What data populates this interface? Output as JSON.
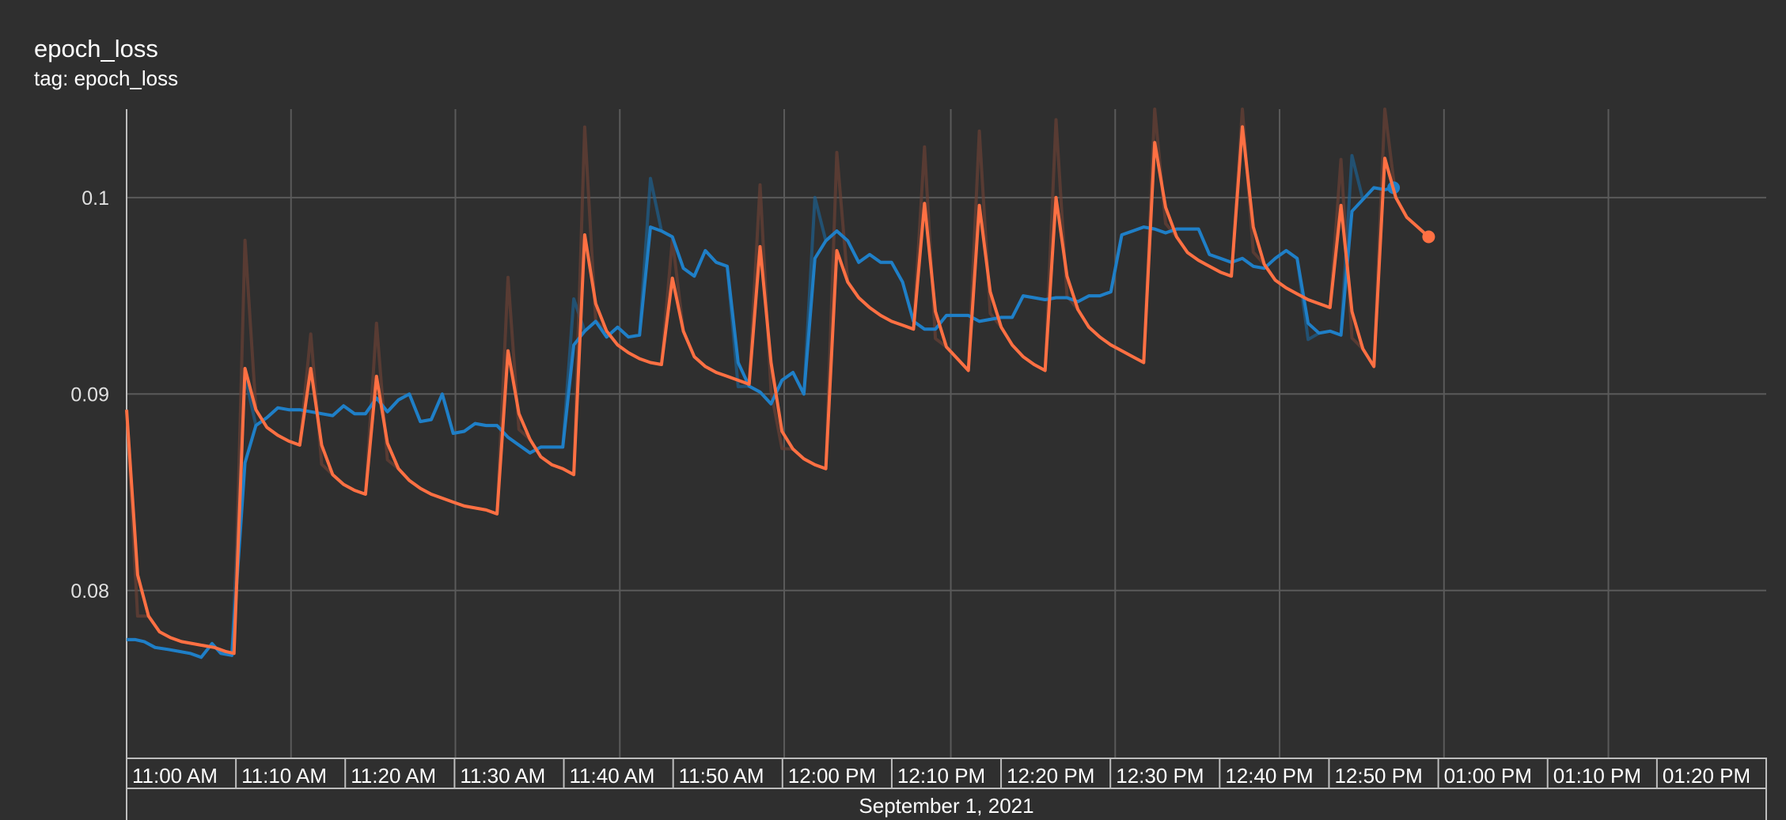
{
  "header": {
    "title": "epoch_loss",
    "subtitle": "tag: epoch_loss"
  },
  "chart_data": {
    "type": "line",
    "title": "epoch_loss",
    "subtitle": "tag: epoch_loss",
    "xlabel": "September 1, 2021",
    "ylabel": "",
    "x_unit": "minutes after 11:00 AM",
    "xlim": [
      -3.8,
      71
    ],
    "ylim": [
      0.0715,
      0.1045
    ],
    "grid": true,
    "y_ticks": [
      {
        "value": 0.08,
        "label": "0.08"
      },
      {
        "value": 0.09,
        "label": "0.09"
      },
      {
        "value": 0.1,
        "label": "0.1"
      }
    ],
    "x_ticks": [
      {
        "value": 0,
        "label": "11:00 AM"
      },
      {
        "value": 5,
        "label": "11:10 AM"
      },
      {
        "value": 10,
        "label": "11:20 AM"
      },
      {
        "value": 15,
        "label": "11:30 AM"
      },
      {
        "value": 20,
        "label": "11:40 AM"
      },
      {
        "value": 25,
        "label": "11:50 AM"
      },
      {
        "value": 30,
        "label": "12:00 PM"
      },
      {
        "value": 35,
        "label": "12:10 PM"
      },
      {
        "value": 40,
        "label": "12:20 PM"
      },
      {
        "value": 45,
        "label": "12:30 PM"
      },
      {
        "value": 50,
        "label": "12:40 PM"
      },
      {
        "value": 55,
        "label": "12:50 PM"
      },
      {
        "value": 60,
        "label": "01:00 PM"
      },
      {
        "value": 65,
        "label": "01:10 PM"
      },
      {
        "value": 70,
        "label": "01:20 PM"
      }
    ],
    "grid_x": [
      3.7,
      11.2,
      18.7,
      26.2,
      33.8,
      41.3,
      48.8,
      56.3,
      63.8
    ],
    "series": [
      {
        "name": "",
        "color": "#1f7fc7",
        "raw_color": "#1d5f8f",
        "values": [
          [
            -3.8,
            0.0775
          ],
          [
            -3.4,
            0.0775
          ],
          [
            -3.0,
            0.0774
          ],
          [
            -2.5,
            0.0771
          ],
          [
            -1.9,
            0.077
          ],
          [
            -1.4,
            0.0769
          ],
          [
            -0.9,
            0.0768
          ],
          [
            -0.4,
            0.0766
          ],
          [
            0.1,
            0.0773
          ],
          [
            0.5,
            0.0768
          ],
          [
            1.0,
            0.0767
          ],
          [
            1.6,
            0.0865
          ],
          [
            2.1,
            0.0884
          ],
          [
            2.6,
            0.0888
          ],
          [
            3.1,
            0.0893
          ],
          [
            3.6,
            0.0892
          ],
          [
            4.1,
            0.0892
          ],
          [
            4.6,
            0.0891
          ],
          [
            5.1,
            0.089
          ],
          [
            5.6,
            0.0889
          ],
          [
            6.1,
            0.0894
          ],
          [
            6.6,
            0.089
          ],
          [
            7.1,
            0.089
          ],
          [
            7.6,
            0.0898
          ],
          [
            8.1,
            0.0891
          ],
          [
            8.6,
            0.0897
          ],
          [
            9.1,
            0.09
          ],
          [
            9.6,
            0.0886
          ],
          [
            10.1,
            0.0887
          ],
          [
            10.6,
            0.09
          ],
          [
            11.1,
            0.088
          ],
          [
            11.6,
            0.0881
          ],
          [
            12.1,
            0.0885
          ],
          [
            12.6,
            0.0884
          ],
          [
            13.1,
            0.0884
          ],
          [
            13.6,
            0.0878
          ],
          [
            14.1,
            0.0874
          ],
          [
            14.6,
            0.087
          ],
          [
            15.1,
            0.0873
          ],
          [
            15.6,
            0.0873
          ],
          [
            16.1,
            0.0873
          ],
          [
            16.6,
            0.0925
          ],
          [
            17.1,
            0.0932
          ],
          [
            17.6,
            0.0937
          ],
          [
            18.1,
            0.0929
          ],
          [
            18.6,
            0.0934
          ],
          [
            19.1,
            0.0929
          ],
          [
            19.6,
            0.093
          ],
          [
            20.1,
            0.0985
          ],
          [
            20.6,
            0.0983
          ],
          [
            21.1,
            0.098
          ],
          [
            21.6,
            0.0964
          ],
          [
            22.1,
            0.096
          ],
          [
            22.6,
            0.0973
          ],
          [
            23.1,
            0.0967
          ],
          [
            23.6,
            0.0965
          ],
          [
            24.1,
            0.0916
          ],
          [
            24.6,
            0.0904
          ],
          [
            25.1,
            0.0901
          ],
          [
            25.6,
            0.0895
          ],
          [
            26.1,
            0.0907
          ],
          [
            26.6,
            0.0911
          ],
          [
            27.1,
            0.09
          ],
          [
            27.6,
            0.0969
          ],
          [
            28.1,
            0.0978
          ],
          [
            28.6,
            0.0983
          ],
          [
            29.1,
            0.0978
          ],
          [
            29.6,
            0.0967
          ],
          [
            30.1,
            0.0971
          ],
          [
            30.6,
            0.0967
          ],
          [
            31.1,
            0.0967
          ],
          [
            31.6,
            0.0957
          ],
          [
            32.1,
            0.0937
          ],
          [
            32.6,
            0.0933
          ],
          [
            33.1,
            0.0933
          ],
          [
            33.6,
            0.094
          ],
          [
            34.1,
            0.094
          ],
          [
            34.6,
            0.094
          ],
          [
            35.1,
            0.0937
          ],
          [
            35.6,
            0.0938
          ],
          [
            36.1,
            0.0939
          ],
          [
            36.6,
            0.0939
          ],
          [
            37.1,
            0.095
          ],
          [
            37.6,
            0.0949
          ],
          [
            38.1,
            0.0948
          ],
          [
            38.6,
            0.0949
          ],
          [
            39.1,
            0.0949
          ],
          [
            39.6,
            0.0947
          ],
          [
            40.1,
            0.095
          ],
          [
            40.6,
            0.095
          ],
          [
            41.1,
            0.0952
          ],
          [
            41.6,
            0.0981
          ],
          [
            42.1,
            0.0983
          ],
          [
            42.6,
            0.0985
          ],
          [
            43.1,
            0.0984
          ],
          [
            43.6,
            0.0982
          ],
          [
            44.1,
            0.0984
          ],
          [
            44.6,
            0.0984
          ],
          [
            45.1,
            0.0984
          ],
          [
            45.6,
            0.0971
          ],
          [
            46.1,
            0.0969
          ],
          [
            46.6,
            0.0967
          ],
          [
            47.1,
            0.0969
          ],
          [
            47.6,
            0.0965
          ],
          [
            48.1,
            0.0964
          ],
          [
            48.6,
            0.0969
          ],
          [
            49.1,
            0.0973
          ],
          [
            49.6,
            0.0969
          ],
          [
            50.1,
            0.0936
          ],
          [
            50.6,
            0.0931
          ],
          [
            51.1,
            0.0932
          ],
          [
            51.6,
            0.093
          ],
          [
            52.1,
            0.0993
          ],
          [
            52.6,
            0.0999
          ],
          [
            53.1,
            0.1005
          ],
          [
            53.6,
            0.1004
          ],
          [
            54.0,
            0.1005
          ]
        ]
      },
      {
        "name": "",
        "color": "#ff7043",
        "raw_color": "#6a4034",
        "values": [
          [
            -3.8,
            0.0892
          ],
          [
            -3.3,
            0.0808
          ],
          [
            -2.8,
            0.0787
          ],
          [
            -2.3,
            0.0779
          ],
          [
            -1.8,
            0.0776
          ],
          [
            -1.3,
            0.0774
          ],
          [
            -0.8,
            0.0773
          ],
          [
            -0.3,
            0.0772
          ],
          [
            0.2,
            0.0771
          ],
          [
            0.7,
            0.0769
          ],
          [
            1.1,
            0.0768
          ],
          [
            1.6,
            0.0913
          ],
          [
            2.1,
            0.0892
          ],
          [
            2.6,
            0.0883
          ],
          [
            3.1,
            0.0879
          ],
          [
            3.6,
            0.0876
          ],
          [
            4.1,
            0.0874
          ],
          [
            4.6,
            0.0913
          ],
          [
            5.1,
            0.0874
          ],
          [
            5.6,
            0.0859
          ],
          [
            6.1,
            0.0854
          ],
          [
            6.6,
            0.0851
          ],
          [
            7.1,
            0.0849
          ],
          [
            7.6,
            0.0909
          ],
          [
            8.1,
            0.0875
          ],
          [
            8.6,
            0.0862
          ],
          [
            9.1,
            0.0856
          ],
          [
            9.6,
            0.0852
          ],
          [
            10.1,
            0.0849
          ],
          [
            10.6,
            0.0847
          ],
          [
            11.1,
            0.0845
          ],
          [
            11.6,
            0.0843
          ],
          [
            12.1,
            0.0842
          ],
          [
            12.6,
            0.0841
          ],
          [
            13.1,
            0.0839
          ],
          [
            13.6,
            0.0922
          ],
          [
            14.1,
            0.089
          ],
          [
            14.6,
            0.0877
          ],
          [
            15.1,
            0.0868
          ],
          [
            15.6,
            0.0864
          ],
          [
            16.1,
            0.0862
          ],
          [
            16.6,
            0.0859
          ],
          [
            17.1,
            0.0981
          ],
          [
            17.6,
            0.0946
          ],
          [
            18.1,
            0.0932
          ],
          [
            18.6,
            0.0925
          ],
          [
            19.1,
            0.0921
          ],
          [
            19.6,
            0.0918
          ],
          [
            20.1,
            0.0916
          ],
          [
            20.6,
            0.0915
          ],
          [
            21.1,
            0.0959
          ],
          [
            21.6,
            0.0932
          ],
          [
            22.1,
            0.0919
          ],
          [
            22.6,
            0.0914
          ],
          [
            23.1,
            0.0911
          ],
          [
            23.6,
            0.0909
          ],
          [
            24.1,
            0.0907
          ],
          [
            24.6,
            0.0905
          ],
          [
            25.1,
            0.0975
          ],
          [
            25.6,
            0.0916
          ],
          [
            26.1,
            0.0881
          ],
          [
            26.6,
            0.0872
          ],
          [
            27.1,
            0.0867
          ],
          [
            27.6,
            0.0864
          ],
          [
            28.1,
            0.0862
          ],
          [
            28.6,
            0.0973
          ],
          [
            29.1,
            0.0957
          ],
          [
            29.6,
            0.0949
          ],
          [
            30.1,
            0.0944
          ],
          [
            30.6,
            0.094
          ],
          [
            31.1,
            0.0937
          ],
          [
            31.6,
            0.0935
          ],
          [
            32.1,
            0.0933
          ],
          [
            32.6,
            0.0997
          ],
          [
            33.1,
            0.0942
          ],
          [
            33.6,
            0.0924
          ],
          [
            34.1,
            0.0918
          ],
          [
            34.6,
            0.0912
          ],
          [
            35.1,
            0.0996
          ],
          [
            35.6,
            0.0952
          ],
          [
            36.1,
            0.0934
          ],
          [
            36.6,
            0.0925
          ],
          [
            37.1,
            0.0919
          ],
          [
            37.6,
            0.0915
          ],
          [
            38.1,
            0.0912
          ],
          [
            38.6,
            0.1
          ],
          [
            39.1,
            0.096
          ],
          [
            39.6,
            0.0943
          ],
          [
            40.1,
            0.0934
          ],
          [
            40.6,
            0.0929
          ],
          [
            41.1,
            0.0925
          ],
          [
            41.6,
            0.0922
          ],
          [
            42.1,
            0.0919
          ],
          [
            42.6,
            0.0916
          ],
          [
            43.1,
            0.1028
          ],
          [
            43.6,
            0.0995
          ],
          [
            44.1,
            0.098
          ],
          [
            44.6,
            0.0972
          ],
          [
            45.1,
            0.0968
          ],
          [
            45.6,
            0.0965
          ],
          [
            46.1,
            0.0962
          ],
          [
            46.6,
            0.096
          ],
          [
            47.1,
            0.1036
          ],
          [
            47.6,
            0.0985
          ],
          [
            48.1,
            0.0966
          ],
          [
            48.6,
            0.0958
          ],
          [
            49.1,
            0.0954
          ],
          [
            49.6,
            0.0951
          ],
          [
            50.1,
            0.0948
          ],
          [
            50.6,
            0.0946
          ],
          [
            51.1,
            0.0944
          ],
          [
            51.6,
            0.0996
          ],
          [
            52.1,
            0.0942
          ],
          [
            52.6,
            0.0923
          ],
          [
            53.1,
            0.0914
          ],
          [
            53.6,
            0.102
          ],
          [
            54.1,
            0.1
          ],
          [
            54.6,
            0.099
          ],
          [
            55.1,
            0.0985
          ],
          [
            55.6,
            0.098
          ]
        ]
      }
    ]
  }
}
